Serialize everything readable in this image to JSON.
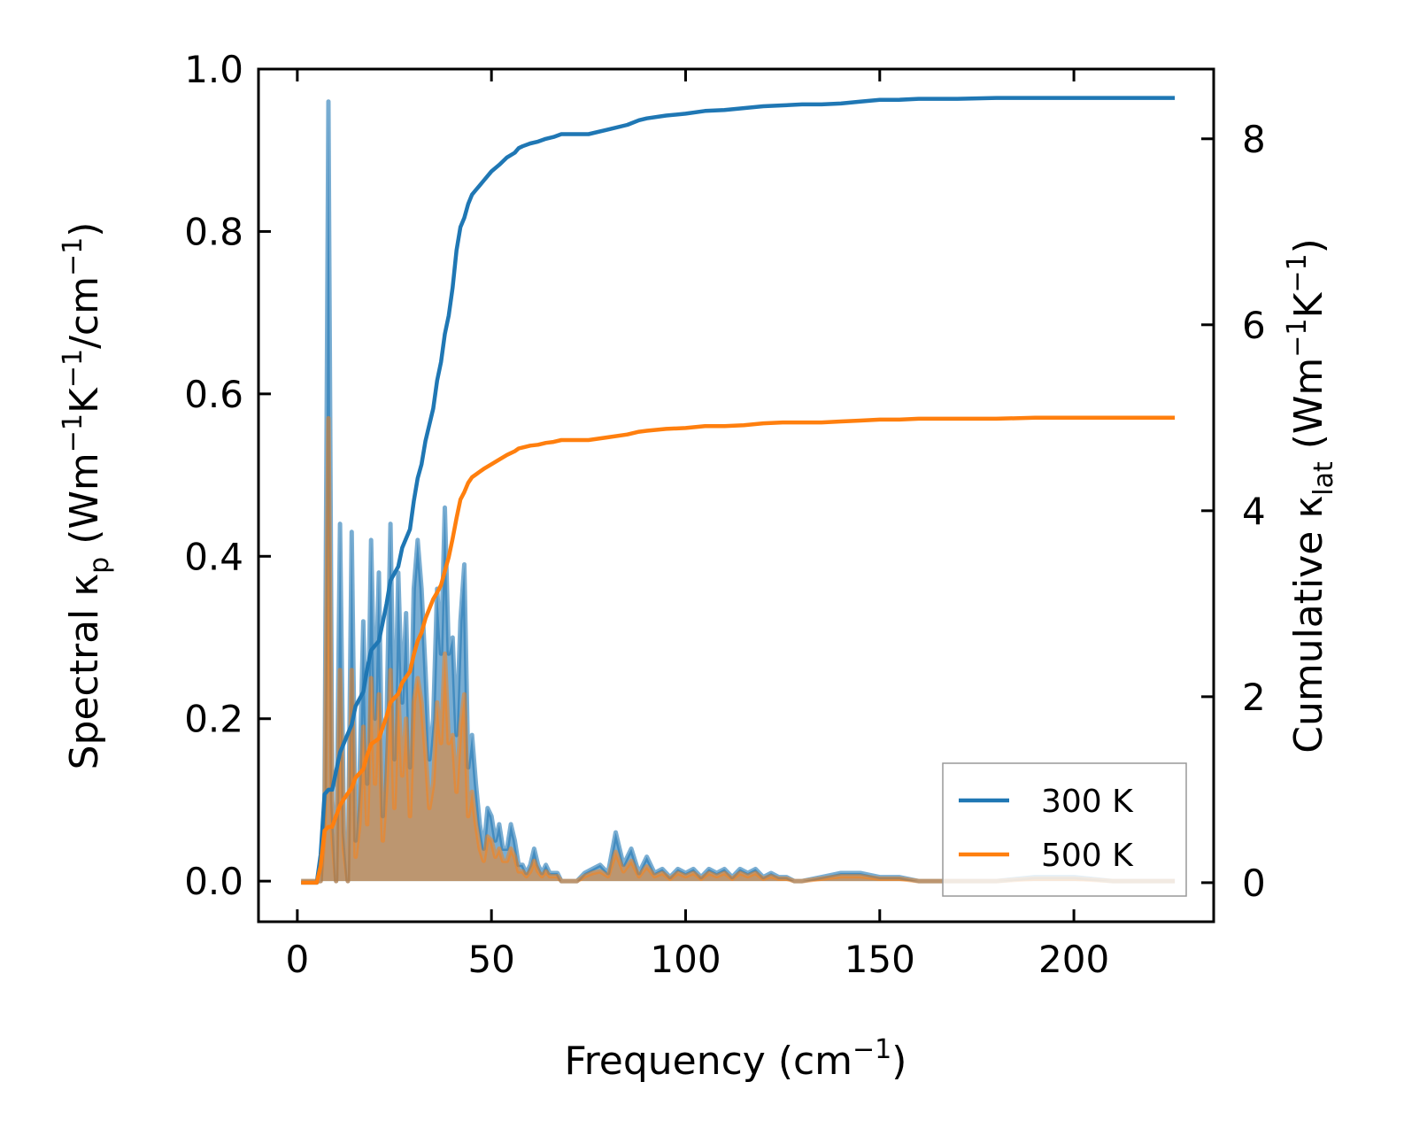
{
  "chart_data": {
    "type": "line",
    "title": "",
    "xlabel": "Frequency (cm",
    "xlabel_sup": "−1",
    "xlabel_end": ")",
    "ylabel_left": {
      "t1": "Spectral κ",
      "sub1": "p",
      "t2": " (Wm",
      "sup1": "−1",
      "t3": "K",
      "sup2": "−1",
      "t4": "/cm",
      "sup3": "−1",
      "t5": ")"
    },
    "ylabel_right": {
      "t1": "Cumulative κ",
      "sub1": "lat",
      "t2": " (Wm",
      "sup1": "−1",
      "t3": "K",
      "sup2": "−1",
      "t4": ")"
    },
    "xlim": [
      -10,
      236
    ],
    "ylim_left": [
      -0.05,
      1.0
    ],
    "ylim_right": [
      -0.42,
      8.75
    ],
    "xticks": [
      0,
      50,
      100,
      150,
      200
    ],
    "xtick_labels": [
      "0",
      "50",
      "100",
      "150",
      "200"
    ],
    "yticks_left": [
      0.0,
      0.2,
      0.4,
      0.6,
      0.8,
      1.0
    ],
    "ytick_labels_left": [
      "0.0",
      "0.2",
      "0.4",
      "0.6",
      "0.8",
      "1.0"
    ],
    "yticks_right": [
      0,
      2,
      4,
      6,
      8
    ],
    "ytick_labels_right": [
      "0",
      "2",
      "4",
      "6",
      "8"
    ],
    "legend_position": "lower-right",
    "colors": {
      "300K": "#1f77b4",
      "500K": "#ff7f0e",
      "overlap_fill": "#c8a174"
    },
    "series": [
      {
        "name": "300 K",
        "color": "#1f77b4",
        "spectral": {
          "x": [
            1,
            2,
            3,
            4,
            5,
            6,
            7,
            8,
            9,
            10,
            11,
            12,
            13,
            14,
            15,
            16,
            17,
            18,
            19,
            20,
            21,
            22,
            23,
            24,
            25,
            26,
            27,
            28,
            29,
            30,
            31,
            32,
            33,
            34,
            35,
            36,
            37,
            38,
            39,
            40,
            41,
            42,
            43,
            44,
            45,
            46,
            47,
            48,
            49,
            50,
            51,
            52,
            53,
            54,
            55,
            56,
            57,
            58,
            59,
            60,
            61,
            62,
            63,
            64,
            65,
            66,
            67,
            68,
            69,
            70,
            72,
            74,
            76,
            78,
            80,
            82,
            84,
            86,
            88,
            90,
            92,
            94,
            96,
            98,
            100,
            102,
            104,
            106,
            108,
            110,
            112,
            114,
            116,
            118,
            120,
            122,
            124,
            126,
            128,
            130,
            135,
            140,
            145,
            150,
            155,
            160,
            165,
            170,
            180,
            190,
            200,
            210,
            226
          ],
          "y": [
            0,
            0,
            0,
            0,
            0,
            0,
            0.1,
            0.96,
            0.1,
            0,
            0.44,
            0.06,
            0,
            0.43,
            0.05,
            0.12,
            0.32,
            0.12,
            0.42,
            0.2,
            0.38,
            0.08,
            0.2,
            0.44,
            0.15,
            0.38,
            0.22,
            0.33,
            0.14,
            0.36,
            0.42,
            0.36,
            0.26,
            0.15,
            0.2,
            0.36,
            0.28,
            0.46,
            0.28,
            0.3,
            0.18,
            0.32,
            0.39,
            0.14,
            0.18,
            0.12,
            0.07,
            0.04,
            0.09,
            0.08,
            0.05,
            0.07,
            0.04,
            0.04,
            0.07,
            0.05,
            0.02,
            0.02,
            0.01,
            0.02,
            0.04,
            0.02,
            0.01,
            0.02,
            0.01,
            0.01,
            0.01,
            0,
            0,
            0,
            0,
            0.01,
            0.015,
            0.02,
            0.01,
            0.06,
            0.02,
            0.04,
            0.01,
            0.03,
            0.01,
            0.015,
            0.005,
            0.015,
            0.01,
            0.015,
            0.005,
            0.015,
            0.01,
            0.015,
            0.005,
            0.015,
            0.01,
            0.015,
            0.005,
            0.01,
            0.005,
            0.005,
            0,
            0,
            0.005,
            0.01,
            0.01,
            0.005,
            0.005,
            0,
            0,
            0,
            0,
            0.005,
            0.005,
            0,
            0
          ]
        },
        "cumulative": {
          "x": [
            1,
            5,
            6,
            7,
            8,
            9,
            10,
            11,
            12,
            14,
            15,
            17,
            18,
            19,
            21,
            22,
            23,
            24,
            26,
            27,
            29,
            30,
            31,
            32,
            33,
            35,
            36,
            37,
            38,
            39,
            40,
            41,
            42,
            43,
            44,
            45,
            46,
            47,
            48,
            50,
            52,
            54,
            56,
            57,
            58,
            60,
            62,
            64,
            66,
            68,
            70,
            75,
            80,
            85,
            88,
            90,
            95,
            100,
            105,
            110,
            115,
            120,
            125,
            130,
            135,
            140,
            145,
            150,
            155,
            160,
            170,
            180,
            190,
            200,
            226
          ],
          "y": [
            0,
            0,
            0.3,
            0.95,
            1.0,
            1.0,
            1.2,
            1.4,
            1.5,
            1.7,
            1.9,
            2.05,
            2.3,
            2.5,
            2.6,
            2.8,
            3.0,
            3.25,
            3.4,
            3.6,
            3.8,
            4.1,
            4.35,
            4.5,
            4.75,
            5.1,
            5.4,
            5.6,
            5.9,
            6.1,
            6.4,
            6.8,
            7.05,
            7.15,
            7.3,
            7.4,
            7.45,
            7.5,
            7.55,
            7.65,
            7.72,
            7.8,
            7.85,
            7.9,
            7.92,
            7.95,
            7.97,
            8.0,
            8.02,
            8.05,
            8.05,
            8.05,
            8.1,
            8.15,
            8.2,
            8.22,
            8.25,
            8.27,
            8.3,
            8.31,
            8.33,
            8.35,
            8.36,
            8.37,
            8.37,
            8.38,
            8.4,
            8.42,
            8.42,
            8.43,
            8.43,
            8.44,
            8.44,
            8.44,
            8.44
          ]
        }
      },
      {
        "name": "500 K",
        "color": "#ff7f0e",
        "spectral": {
          "x": [
            1,
            2,
            3,
            4,
            5,
            6,
            7,
            8,
            9,
            10,
            11,
            12,
            13,
            14,
            15,
            16,
            17,
            18,
            19,
            20,
            21,
            22,
            23,
            24,
            25,
            26,
            27,
            28,
            29,
            30,
            31,
            32,
            33,
            34,
            35,
            36,
            37,
            38,
            39,
            40,
            41,
            42,
            43,
            44,
            45,
            46,
            47,
            48,
            49,
            50,
            51,
            52,
            53,
            54,
            55,
            56,
            57,
            58,
            59,
            60,
            61,
            62,
            63,
            64,
            65,
            66,
            67,
            68,
            69,
            70,
            72,
            74,
            76,
            78,
            80,
            82,
            84,
            86,
            88,
            90,
            92,
            94,
            96,
            98,
            100,
            102,
            104,
            106,
            108,
            110,
            112,
            114,
            116,
            118,
            120,
            122,
            124,
            126,
            128,
            130,
            135,
            140,
            145,
            150,
            155,
            160,
            165,
            170,
            180,
            190,
            200,
            210,
            226
          ],
          "y": [
            0,
            0,
            0,
            0,
            0,
            0,
            0.06,
            0.57,
            0.06,
            0,
            0.26,
            0.04,
            0,
            0.26,
            0.03,
            0.07,
            0.19,
            0.07,
            0.25,
            0.12,
            0.23,
            0.05,
            0.12,
            0.26,
            0.09,
            0.23,
            0.13,
            0.2,
            0.08,
            0.22,
            0.25,
            0.22,
            0.16,
            0.09,
            0.12,
            0.22,
            0.17,
            0.28,
            0.17,
            0.18,
            0.11,
            0.19,
            0.23,
            0.08,
            0.11,
            0.07,
            0.04,
            0.025,
            0.055,
            0.05,
            0.03,
            0.04,
            0.025,
            0.025,
            0.04,
            0.03,
            0.012,
            0.012,
            0.006,
            0.012,
            0.025,
            0.012,
            0.006,
            0.012,
            0.006,
            0.006,
            0.006,
            0,
            0,
            0,
            0,
            0.006,
            0.01,
            0.012,
            0.006,
            0.036,
            0.012,
            0.025,
            0.006,
            0.018,
            0.006,
            0.01,
            0.003,
            0.01,
            0.006,
            0.01,
            0.003,
            0.01,
            0.006,
            0.01,
            0.003,
            0.01,
            0.006,
            0.01,
            0.003,
            0.006,
            0.003,
            0.003,
            0,
            0,
            0.003,
            0.006,
            0.006,
            0.003,
            0.003,
            0,
            0,
            0,
            0,
            0.003,
            0.003,
            0,
            0
          ]
        },
        "cumulative": {
          "x": [
            1,
            5,
            6,
            7,
            8,
            9,
            10,
            11,
            12,
            14,
            15,
            17,
            18,
            19,
            21,
            22,
            23,
            24,
            26,
            27,
            29,
            30,
            31,
            32,
            33,
            35,
            36,
            37,
            38,
            39,
            40,
            41,
            42,
            43,
            44,
            45,
            46,
            47,
            48,
            50,
            52,
            54,
            56,
            57,
            58,
            60,
            62,
            64,
            66,
            68,
            70,
            75,
            80,
            85,
            88,
            90,
            95,
            100,
            105,
            110,
            115,
            120,
            125,
            130,
            135,
            140,
            145,
            150,
            155,
            160,
            170,
            180,
            190,
            200,
            226
          ],
          "y": [
            0,
            0,
            0.18,
            0.56,
            0.6,
            0.6,
            0.72,
            0.83,
            0.9,
            1.02,
            1.13,
            1.22,
            1.37,
            1.49,
            1.55,
            1.67,
            1.79,
            1.94,
            2.03,
            2.15,
            2.27,
            2.45,
            2.6,
            2.69,
            2.84,
            3.05,
            3.12,
            3.2,
            3.35,
            3.5,
            3.7,
            3.92,
            4.12,
            4.2,
            4.3,
            4.36,
            4.39,
            4.42,
            4.45,
            4.5,
            4.55,
            4.6,
            4.64,
            4.67,
            4.68,
            4.7,
            4.71,
            4.73,
            4.74,
            4.76,
            4.76,
            4.76,
            4.79,
            4.82,
            4.85,
            4.86,
            4.88,
            4.89,
            4.91,
            4.91,
            4.92,
            4.94,
            4.95,
            4.95,
            4.95,
            4.96,
            4.97,
            4.98,
            4.98,
            4.99,
            4.99,
            4.99,
            5.0,
            5.0,
            5.0
          ]
        }
      }
    ]
  }
}
